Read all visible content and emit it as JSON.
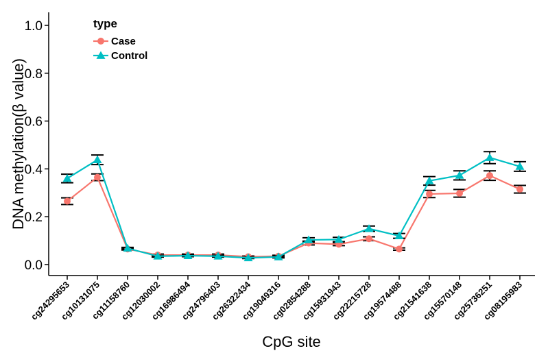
{
  "chart_data": {
    "type": "line",
    "xlabel": "CpG site",
    "ylabel": "DNA methylation(β value)",
    "ylim": [
      -0.04,
      1.05
    ],
    "yticks": [
      "0.0",
      "0.2",
      "0.4",
      "0.6",
      "0.8",
      "1.0"
    ],
    "grid": false,
    "legend": {
      "title": "type",
      "position": "top-left"
    },
    "categories": [
      "cg24295653",
      "cg10131075",
      "cg11158760",
      "cg12030002",
      "cg16986494",
      "cg24796403",
      "cg26322434",
      "cg19049316",
      "cg02854288",
      "cg15931943",
      "cg22215728",
      "cg19574488",
      "cg21541638",
      "cg15570148",
      "cg25736251",
      "cg08195983"
    ],
    "series": [
      {
        "name": "Case",
        "color": "#F8766D",
        "marker": "circle",
        "values": [
          0.265,
          0.365,
          0.065,
          0.04,
          0.04,
          0.04,
          0.033,
          0.035,
          0.09,
          0.085,
          0.108,
          0.065,
          0.295,
          0.298,
          0.372,
          0.315
        ],
        "err": [
          0.014,
          0.014,
          0.004,
          0.004,
          0.004,
          0.004,
          0.003,
          0.004,
          0.008,
          0.006,
          0.008,
          0.005,
          0.015,
          0.016,
          0.02,
          0.016
        ]
      },
      {
        "name": "Control",
        "color": "#00BFC4",
        "marker": "triangle",
        "values": [
          0.36,
          0.438,
          0.068,
          0.035,
          0.037,
          0.035,
          0.028,
          0.032,
          0.103,
          0.105,
          0.15,
          0.12,
          0.35,
          0.373,
          0.447,
          0.41
        ],
        "err": [
          0.018,
          0.02,
          0.004,
          0.004,
          0.004,
          0.004,
          0.003,
          0.004,
          0.009,
          0.009,
          0.011,
          0.01,
          0.018,
          0.019,
          0.025,
          0.02
        ]
      }
    ]
  }
}
